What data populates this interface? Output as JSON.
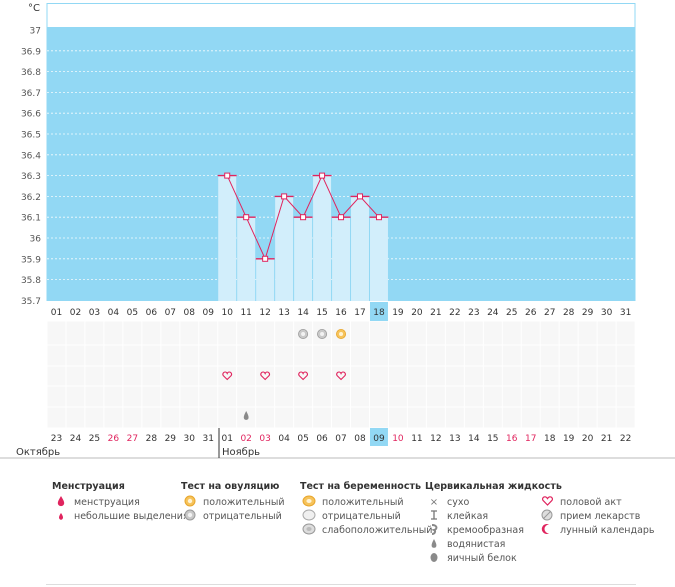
{
  "chart_data": {
    "type": "line",
    "y_unit": "°C",
    "ylim": [
      35.7,
      37.0
    ],
    "y_ticks": [
      "37",
      "36.9",
      "36.8",
      "36.7",
      "36.6",
      "36.5",
      "36.4",
      "36.3",
      "36.2",
      "36.1",
      "36",
      "35.9",
      "35.8",
      "35.7"
    ],
    "days_top": [
      "01",
      "02",
      "03",
      "04",
      "05",
      "06",
      "07",
      "08",
      "09",
      "10",
      "11",
      "12",
      "13",
      "14",
      "15",
      "16",
      "17",
      "18",
      "19",
      "20",
      "21",
      "22",
      "23",
      "24",
      "25",
      "26",
      "27",
      "28",
      "29",
      "30",
      "31"
    ],
    "current_day": "18",
    "series": [
      {
        "days": [
          10,
          11,
          12,
          13,
          14,
          15,
          16,
          17,
          18
        ],
        "values": [
          36.3,
          36.1,
          35.9,
          36.2,
          36.1,
          36.3,
          36.1,
          36.2,
          36.1
        ]
      }
    ],
    "days_bottom": [
      "23",
      "24",
      "25",
      "26",
      "27",
      "28",
      "29",
      "30",
      "31",
      "01",
      "02",
      "03",
      "04",
      "05",
      "06",
      "07",
      "08",
      "09",
      "10",
      "11",
      "12",
      "13",
      "14",
      "15",
      "16",
      "17",
      "18",
      "19",
      "20",
      "21",
      "22"
    ],
    "bottom_highlight": [
      26,
      27,
      2,
      3,
      10,
      16,
      17
    ],
    "bottom_current": "09",
    "month_left": "Октябрь",
    "month_right": "Ноябрь",
    "markers": {
      "ovulation_negative": [
        14,
        15
      ],
      "ovulation_positive": [
        16
      ],
      "intercourse": [
        10,
        12,
        14,
        16
      ],
      "fluid_watery": [
        11
      ]
    },
    "colors": {
      "bg": "#92d8f4",
      "bar": "#d2eefb",
      "line": "#e0245e",
      "accent": "#e0245e"
    }
  },
  "legend": {
    "menstruation": {
      "title": "Менструация",
      "items": [
        "менструация",
        "небольшие выделения"
      ]
    },
    "ovulation_test": {
      "title": "Тест на овуляцию",
      "items": [
        "положительный",
        "отрицательный"
      ]
    },
    "pregnancy_test": {
      "title": "Тест на беременность",
      "items": [
        "положительный",
        "отрицательный",
        "слабоположительный"
      ]
    },
    "cervical_fluid": {
      "title": "Цервикальная жидкость",
      "items": [
        "сухо",
        "клейкая",
        "кремообразная",
        "водянистая",
        "яичный белок"
      ]
    },
    "other": {
      "items": [
        "половой акт",
        "прием лекарств",
        "лунный календарь"
      ]
    }
  }
}
